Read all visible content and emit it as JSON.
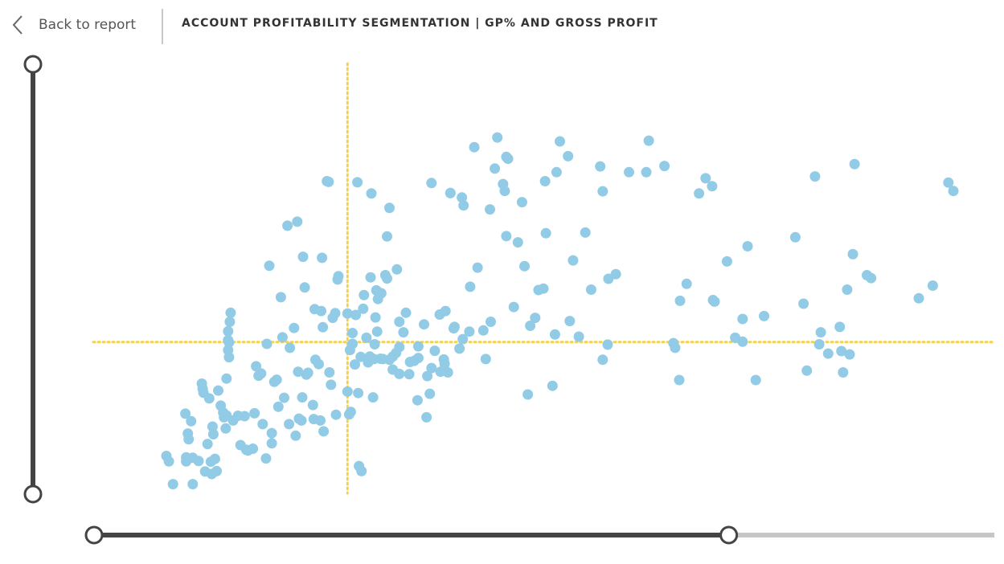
{
  "header": {
    "back_label": "Back to report",
    "title": "ACCOUNT PROFITABILITY SEGMENTATION | GP% AND GROSS PROFIT"
  },
  "colors": {
    "point": "#92cbe6",
    "threshold": "#f6d24b",
    "slider_track": "#444444",
    "slider_rest": "#c6c6c6"
  },
  "sliders": {
    "vertical": {
      "low": 0,
      "high": 1
    },
    "horizontal": {
      "low": 0,
      "high": 0.705
    }
  },
  "chart_data": {
    "type": "scatter",
    "title": "",
    "xlabel": "",
    "ylabel": "",
    "xlim": [
      0,
      100
    ],
    "ylim": [
      0,
      100
    ],
    "grid": false,
    "thresholds": {
      "x": 26.3,
      "y": 40.5
    },
    "series": [
      {
        "points": [
          [
            4.3,
            9.0
          ],
          [
            4.6,
            7.5
          ],
          [
            5.1,
            1.2
          ],
          [
            6.6,
            20.7
          ],
          [
            6.7,
            8.6
          ],
          [
            6.7,
            7.5
          ],
          [
            6.9,
            15.2
          ],
          [
            7.0,
            13.6
          ],
          [
            7.3,
            18.6
          ],
          [
            7.5,
            8.5
          ],
          [
            7.5,
            1.2
          ],
          [
            8.2,
            7.6
          ],
          [
            8.6,
            29.0
          ],
          [
            8.7,
            27.6
          ],
          [
            8.8,
            26.5
          ],
          [
            9.0,
            4.7
          ],
          [
            9.3,
            12.3
          ],
          [
            9.5,
            24.9
          ],
          [
            9.7,
            7.4
          ],
          [
            9.8,
            4.0
          ],
          [
            9.9,
            17.1
          ],
          [
            10.0,
            15.0
          ],
          [
            10.2,
            8.2
          ],
          [
            10.4,
            4.8
          ],
          [
            10.6,
            27.1
          ],
          [
            10.9,
            22.9
          ],
          [
            11.2,
            21.0
          ],
          [
            11.3,
            19.7
          ],
          [
            11.5,
            16.6
          ],
          [
            11.6,
            20.2
          ],
          [
            11.6,
            30.4
          ],
          [
            11.8,
            43.5
          ],
          [
            11.8,
            41.0
          ],
          [
            11.8,
            38.3
          ],
          [
            11.9,
            40.4
          ],
          [
            11.9,
            36.3
          ],
          [
            12.0,
            46.1
          ],
          [
            12.1,
            48.6
          ],
          [
            12.4,
            18.8
          ],
          [
            13.0,
            20.1
          ],
          [
            13.3,
            12.0
          ],
          [
            13.8,
            20.0
          ],
          [
            14.0,
            10.7
          ],
          [
            14.2,
            10.5
          ],
          [
            14.8,
            11.0
          ],
          [
            15.0,
            20.8
          ],
          [
            15.2,
            33.8
          ],
          [
            15.5,
            31.2
          ],
          [
            15.8,
            31.8
          ],
          [
            16.0,
            17.8
          ],
          [
            16.4,
            8.3
          ],
          [
            16.5,
            40.0
          ],
          [
            16.8,
            61.6
          ],
          [
            17.1,
            12.5
          ],
          [
            17.1,
            15.3
          ],
          [
            17.4,
            29.5
          ],
          [
            17.7,
            30.1
          ],
          [
            17.9,
            22.6
          ],
          [
            18.2,
            52.9
          ],
          [
            18.4,
            41.8
          ],
          [
            18.6,
            25.1
          ],
          [
            19.0,
            72.7
          ],
          [
            19.2,
            17.8
          ],
          [
            19.3,
            38.9
          ],
          [
            19.8,
            44.4
          ],
          [
            20.0,
            14.6
          ],
          [
            20.2,
            73.8
          ],
          [
            20.3,
            32.3
          ],
          [
            20.4,
            19.3
          ],
          [
            20.7,
            18.8
          ],
          [
            20.8,
            25.2
          ],
          [
            20.9,
            64.1
          ],
          [
            21.1,
            55.6
          ],
          [
            21.3,
            31.5
          ],
          [
            21.5,
            32.0
          ],
          [
            22.1,
            23.1
          ],
          [
            22.2,
            19.2
          ],
          [
            22.3,
            49.6
          ],
          [
            22.4,
            35.6
          ],
          [
            22.8,
            34.4
          ],
          [
            23.0,
            18.8
          ],
          [
            23.1,
            49.1
          ],
          [
            23.2,
            63.8
          ],
          [
            23.3,
            44.6
          ],
          [
            23.4,
            15.8
          ],
          [
            23.8,
            85.0
          ],
          [
            24.0,
            84.8
          ],
          [
            24.1,
            32.1
          ],
          [
            24.3,
            28.7
          ],
          [
            24.5,
            47.2
          ],
          [
            24.8,
            48.5
          ],
          [
            24.9,
            20.4
          ],
          [
            25.1,
            57.8
          ],
          [
            25.2,
            58.7
          ],
          [
            26.3,
            48.4
          ],
          [
            26.3,
            26.8
          ],
          [
            26.5,
            20.5
          ],
          [
            26.7,
            21.2
          ],
          [
            26.9,
            43.0
          ],
          [
            26.9,
            40.0
          ],
          [
            26.6,
            38.3
          ],
          [
            27.2,
            34.3
          ],
          [
            27.3,
            48.0
          ],
          [
            27.5,
            84.7
          ],
          [
            27.6,
            26.4
          ],
          [
            27.7,
            6.2
          ],
          [
            27.9,
            36.4
          ],
          [
            28.0,
            4.8
          ],
          [
            28.2,
            49.7
          ],
          [
            28.3,
            53.5
          ],
          [
            28.6,
            41.7
          ],
          [
            28.8,
            34.9
          ],
          [
            29.0,
            36.5
          ],
          [
            29.1,
            58.4
          ],
          [
            29.2,
            81.6
          ],
          [
            29.4,
            25.2
          ],
          [
            29.5,
            35.8
          ],
          [
            29.6,
            39.9
          ],
          [
            29.7,
            47.3
          ],
          [
            29.8,
            54.8
          ],
          [
            29.9,
            43.4
          ],
          [
            30.0,
            52.4
          ],
          [
            30.3,
            35.9
          ],
          [
            30.4,
            54.0
          ],
          [
            30.6,
            35.8
          ],
          [
            30.9,
            59.0
          ],
          [
            31.1,
            58.1
          ],
          [
            31.1,
            69.7
          ],
          [
            31.4,
            77.6
          ],
          [
            31.4,
            35.6
          ],
          [
            31.8,
            36.5
          ],
          [
            31.8,
            32.9
          ],
          [
            32.2,
            37.5
          ],
          [
            32.3,
            60.6
          ],
          [
            32.6,
            46.1
          ],
          [
            32.6,
            31.7
          ],
          [
            32.6,
            39.1
          ],
          [
            33.1,
            43.2
          ],
          [
            33.4,
            48.6
          ],
          [
            33.8,
            31.6
          ],
          [
            33.9,
            35.0
          ],
          [
            34.4,
            35.3
          ],
          [
            34.8,
            24.4
          ],
          [
            34.9,
            36.1
          ],
          [
            34.9,
            39.3
          ],
          [
            35.6,
            45.4
          ],
          [
            35.9,
            19.7
          ],
          [
            36.0,
            31.1
          ],
          [
            36.3,
            26.2
          ],
          [
            36.5,
            84.5
          ],
          [
            36.9,
            38.1
          ],
          [
            36.5,
            33.3
          ],
          [
            37.5,
            48.1
          ],
          [
            37.6,
            32.3
          ],
          [
            38.0,
            35.7
          ],
          [
            38.1,
            34.5
          ],
          [
            38.2,
            49.1
          ],
          [
            38.5,
            32.1
          ],
          [
            38.8,
            81.7
          ],
          [
            38.8,
            81.7
          ],
          [
            39.2,
            44.3
          ],
          [
            39.3,
            44.7
          ],
          [
            39.9,
            38.7
          ],
          [
            40.2,
            80.5
          ],
          [
            40.3,
            41.3
          ],
          [
            40.4,
            78.3
          ],
          [
            41.1,
            43.4
          ],
          [
            41.2,
            55.8
          ],
          [
            41.7,
            94.4
          ],
          [
            42.1,
            61.1
          ],
          [
            42.8,
            43.7
          ],
          [
            43.1,
            35.8
          ],
          [
            43.6,
            77.2
          ],
          [
            43.7,
            46.1
          ],
          [
            44.2,
            88.5
          ],
          [
            44.5,
            97.1
          ],
          [
            45.2,
            84.2
          ],
          [
            45.4,
            82.3
          ],
          [
            45.6,
            69.8
          ],
          [
            45.6,
            91.7
          ],
          [
            45.8,
            91.2
          ],
          [
            46.5,
            50.2
          ],
          [
            47.0,
            68.1
          ],
          [
            47.5,
            79.2
          ],
          [
            47.8,
            61.5
          ],
          [
            48.2,
            26.0
          ],
          [
            48.5,
            45.0
          ],
          [
            49.1,
            47.2
          ],
          [
            49.5,
            54.9
          ],
          [
            50.1,
            55.3
          ],
          [
            50.3,
            85.0
          ],
          [
            50.4,
            70.6
          ],
          [
            51.2,
            28.4
          ],
          [
            51.5,
            42.6
          ],
          [
            51.7,
            87.5
          ],
          [
            52.1,
            96.0
          ],
          [
            53.1,
            91.9
          ],
          [
            53.3,
            46.3
          ],
          [
            53.7,
            63.1
          ],
          [
            54.4,
            42.0
          ],
          [
            55.2,
            70.8
          ],
          [
            55.9,
            55.0
          ],
          [
            57.0,
            89.1
          ],
          [
            57.3,
            35.6
          ],
          [
            57.3,
            82.2
          ],
          [
            57.9,
            39.8
          ],
          [
            58.0,
            58.0
          ],
          [
            58.9,
            59.3
          ],
          [
            60.5,
            87.5
          ],
          [
            62.6,
            87.5
          ],
          [
            62.9,
            96.2
          ],
          [
            64.8,
            89.2
          ],
          [
            65.9,
            40.2
          ],
          [
            66.1,
            38.9
          ],
          [
            66.6,
            30.0
          ],
          [
            66.7,
            51.9
          ],
          [
            67.5,
            56.6
          ],
          [
            69.0,
            81.6
          ],
          [
            69.8,
            85.8
          ],
          [
            70.6,
            83.6
          ],
          [
            70.7,
            52.1
          ],
          [
            70.9,
            51.7
          ],
          [
            72.4,
            62.8
          ],
          [
            73.4,
            41.7
          ],
          [
            74.3,
            40.6
          ],
          [
            74.3,
            46.9
          ],
          [
            74.9,
            67.0
          ],
          [
            75.9,
            30.0
          ],
          [
            76.9,
            47.7
          ],
          [
            80.7,
            69.5
          ],
          [
            81.7,
            51.1
          ],
          [
            82.1,
            32.6
          ],
          [
            83.1,
            86.3
          ],
          [
            83.6,
            39.9
          ],
          [
            83.8,
            43.2
          ],
          [
            84.7,
            37.3
          ],
          [
            86.1,
            44.7
          ],
          [
            86.3,
            38.0
          ],
          [
            86.5,
            32.1
          ],
          [
            87.0,
            55.0
          ],
          [
            87.3,
            37.1
          ],
          [
            87.7,
            64.8
          ],
          [
            87.9,
            89.7
          ],
          [
            89.4,
            59.0
          ],
          [
            89.9,
            58.2
          ],
          [
            95.7,
            52.6
          ],
          [
            97.4,
            56.1
          ],
          [
            99.3,
            84.6
          ],
          [
            99.9,
            82.3
          ]
        ]
      }
    ]
  }
}
